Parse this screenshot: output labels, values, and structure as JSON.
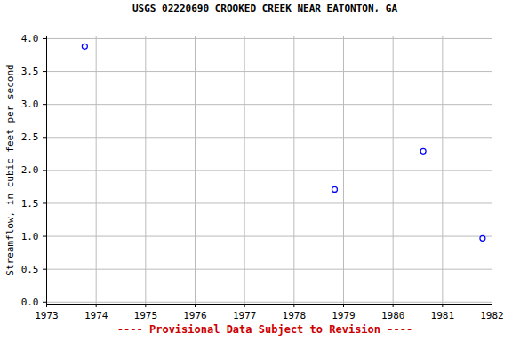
{
  "chart_data": {
    "type": "scatter",
    "title": "USGS 02220690 CROOKED CREEK NEAR EATONTON, GA",
    "caption": "---- Provisional Data Subject to Revision ----",
    "y_label": "Streamflow, in cubic feet per second",
    "x": [
      1973.77,
      1978.82,
      1980.61,
      1981.81
    ],
    "values": [
      3.88,
      1.71,
      2.29,
      0.97
    ],
    "color": "#0000ff",
    "marker": "hollow circle",
    "xlim": [
      1973,
      1982
    ],
    "xticks": [
      1973,
      1974,
      1975,
      1976,
      1977,
      1978,
      1979,
      1980,
      1981,
      1982
    ],
    "ylim": [
      -0.03,
      4.04
    ],
    "yticks": [
      {
        "value": 0,
        "label": "0.0"
      },
      {
        "value": 0.5,
        "label": "0.5"
      },
      {
        "value": 1,
        "label": "1.0"
      },
      1.5,
      {
        "value": 2,
        "label": "2.0"
      },
      2.5,
      {
        "value": 3,
        "label": "3.0"
      },
      3.5,
      {
        "value": 4,
        "label": "4.0"
      }
    ],
    "grid": true
  }
}
